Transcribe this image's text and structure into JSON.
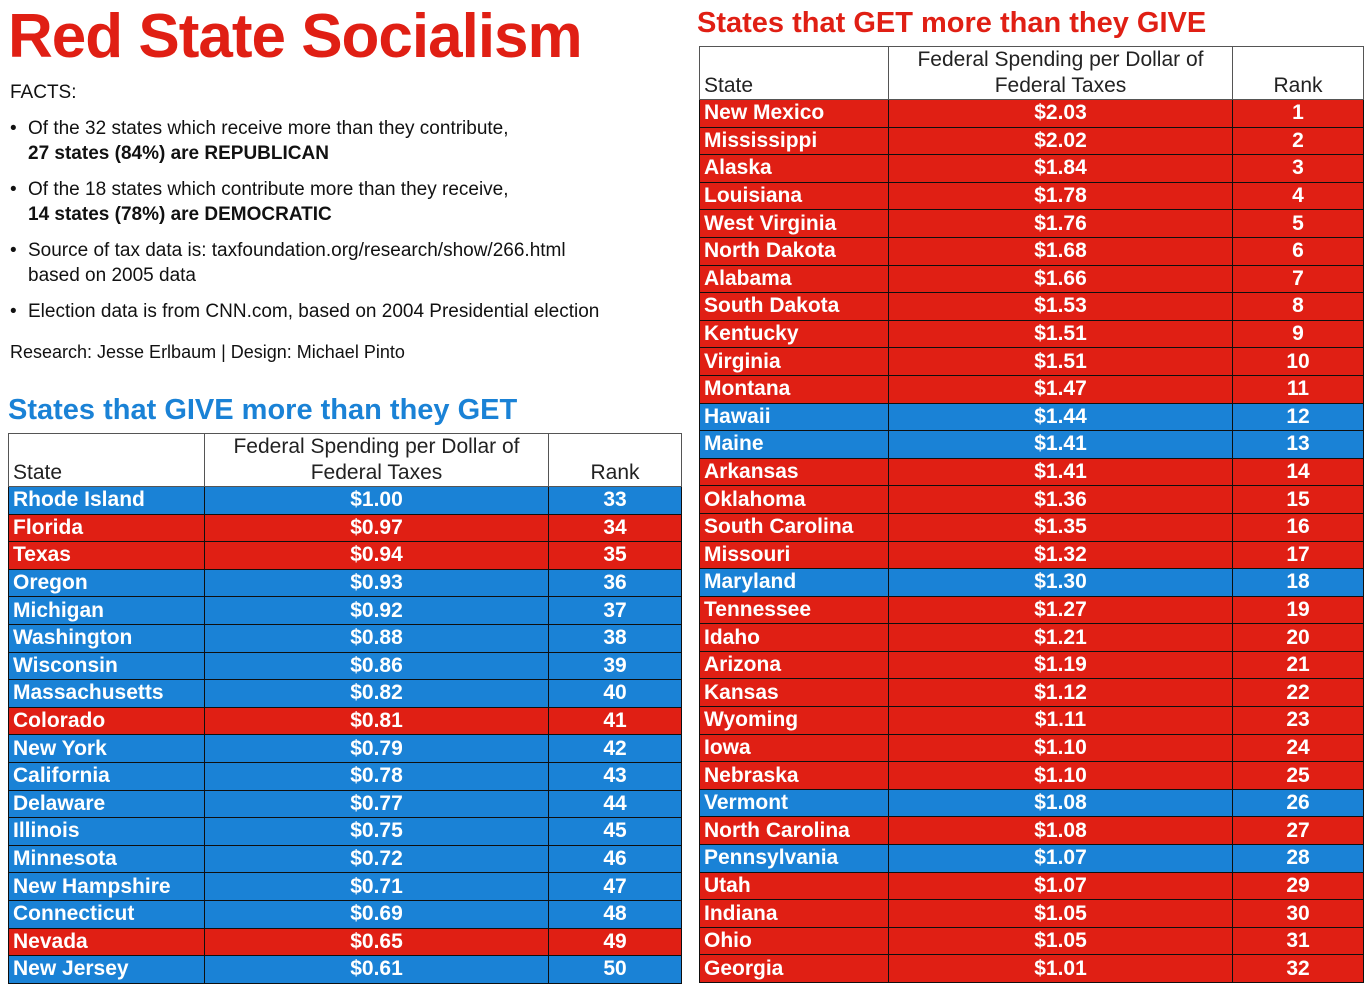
{
  "title": "Red State Socialism",
  "facts_heading": "FACTS:",
  "facts": [
    {
      "line1": "Of the 32 states which receive more than they contribute,",
      "line2": "27 states (84%) are REPUBLICAN"
    },
    {
      "line1": "Of the 18 states which contribute more than they receive,",
      "line2": "14 states (78%) are DEMOCRATIC"
    },
    {
      "line1": "Source of tax data is: taxfoundation.org/research/show/266.html",
      "line2": "based on 2005 data"
    },
    {
      "line1": "Election data is from CNN.com, based on 2004 Presidential election"
    }
  ],
  "bullet": "•",
  "credits": "Research: Jesse Erlbaum | Design: Michael Pinto",
  "colors": {
    "red": "#e01f14",
    "blue": "#1a82d6"
  },
  "give": {
    "title": "States that GIVE more than they GET",
    "headers": {
      "state": "State",
      "fed_line1": "Federal Spending per Dollar of",
      "fed_line2": "Federal Taxes",
      "rank": "Rank"
    },
    "rows": [
      {
        "state": "Rhode Island",
        "value": "$1.00",
        "rank": "33",
        "party": "blue"
      },
      {
        "state": "Florida",
        "value": "$0.97",
        "rank": "34",
        "party": "red"
      },
      {
        "state": "Texas",
        "value": "$0.94",
        "rank": "35",
        "party": "red"
      },
      {
        "state": "Oregon",
        "value": "$0.93",
        "rank": "36",
        "party": "blue"
      },
      {
        "state": "Michigan",
        "value": "$0.92",
        "rank": "37",
        "party": "blue"
      },
      {
        "state": "Washington",
        "value": "$0.88",
        "rank": "38",
        "party": "blue"
      },
      {
        "state": "Wisconsin",
        "value": "$0.86",
        "rank": "39",
        "party": "blue"
      },
      {
        "state": "Massachusetts",
        "value": "$0.82",
        "rank": "40",
        "party": "blue"
      },
      {
        "state": "Colorado",
        "value": "$0.81",
        "rank": "41",
        "party": "red"
      },
      {
        "state": "New York",
        "value": "$0.79",
        "rank": "42",
        "party": "blue"
      },
      {
        "state": "California",
        "value": "$0.78",
        "rank": "43",
        "party": "blue"
      },
      {
        "state": "Delaware",
        "value": "$0.77",
        "rank": "44",
        "party": "blue"
      },
      {
        "state": "Illinois",
        "value": "$0.75",
        "rank": "45",
        "party": "blue"
      },
      {
        "state": "Minnesota",
        "value": "$0.72",
        "rank": "46",
        "party": "blue"
      },
      {
        "state": "New Hampshire",
        "value": "$0.71",
        "rank": "47",
        "party": "blue"
      },
      {
        "state": "Connecticut",
        "value": "$0.69",
        "rank": "48",
        "party": "blue"
      },
      {
        "state": "Nevada",
        "value": "$0.65",
        "rank": "49",
        "party": "red"
      },
      {
        "state": "New Jersey",
        "value": "$0.61",
        "rank": "50",
        "party": "blue"
      }
    ]
  },
  "get": {
    "title": "States that GET more than they GIVE",
    "headers": {
      "state": "State",
      "fed_line1": "Federal Spending per Dollar of",
      "fed_line2": "Federal Taxes",
      "rank": "Rank"
    },
    "rows": [
      {
        "state": "New Mexico",
        "value": "$2.03",
        "rank": "1",
        "party": "red"
      },
      {
        "state": "Mississippi",
        "value": "$2.02",
        "rank": "2",
        "party": "red"
      },
      {
        "state": "Alaska",
        "value": "$1.84",
        "rank": "3",
        "party": "red"
      },
      {
        "state": "Louisiana",
        "value": "$1.78",
        "rank": "4",
        "party": "red"
      },
      {
        "state": "West Virginia",
        "value": "$1.76",
        "rank": "5",
        "party": "red"
      },
      {
        "state": "North Dakota",
        "value": "$1.68",
        "rank": "6",
        "party": "red"
      },
      {
        "state": "Alabama",
        "value": "$1.66",
        "rank": "7",
        "party": "red"
      },
      {
        "state": "South Dakota",
        "value": "$1.53",
        "rank": "8",
        "party": "red"
      },
      {
        "state": "Kentucky",
        "value": "$1.51",
        "rank": "9",
        "party": "red"
      },
      {
        "state": "Virginia",
        "value": "$1.51",
        "rank": "10",
        "party": "red"
      },
      {
        "state": "Montana",
        "value": "$1.47",
        "rank": "11",
        "party": "red"
      },
      {
        "state": "Hawaii",
        "value": "$1.44",
        "rank": "12",
        "party": "blue"
      },
      {
        "state": "Maine",
        "value": "$1.41",
        "rank": "13",
        "party": "blue"
      },
      {
        "state": "Arkansas",
        "value": "$1.41",
        "rank": "14",
        "party": "red"
      },
      {
        "state": "Oklahoma",
        "value": "$1.36",
        "rank": "15",
        "party": "red"
      },
      {
        "state": "South Carolina",
        "value": "$1.35",
        "rank": "16",
        "party": "red"
      },
      {
        "state": "Missouri",
        "value": "$1.32",
        "rank": "17",
        "party": "red"
      },
      {
        "state": "Maryland",
        "value": "$1.30",
        "rank": "18",
        "party": "blue"
      },
      {
        "state": "Tennessee",
        "value": "$1.27",
        "rank": "19",
        "party": "red"
      },
      {
        "state": "Idaho",
        "value": "$1.21",
        "rank": "20",
        "party": "red"
      },
      {
        "state": "Arizona",
        "value": "$1.19",
        "rank": "21",
        "party": "red"
      },
      {
        "state": "Kansas",
        "value": "$1.12",
        "rank": "22",
        "party": "red"
      },
      {
        "state": "Wyoming",
        "value": "$1.11",
        "rank": "23",
        "party": "red"
      },
      {
        "state": "Iowa",
        "value": "$1.10",
        "rank": "24",
        "party": "red"
      },
      {
        "state": "Nebraska",
        "value": "$1.10",
        "rank": "25",
        "party": "red"
      },
      {
        "state": "Vermont",
        "value": "$1.08",
        "rank": "26",
        "party": "blue"
      },
      {
        "state": "North Carolina",
        "value": "$1.08",
        "rank": "27",
        "party": "red"
      },
      {
        "state": "Pennsylvania",
        "value": "$1.07",
        "rank": "28",
        "party": "blue"
      },
      {
        "state": "Utah",
        "value": "$1.07",
        "rank": "29",
        "party": "red"
      },
      {
        "state": "Indiana",
        "value": "$1.05",
        "rank": "30",
        "party": "red"
      },
      {
        "state": "Ohio",
        "value": "$1.05",
        "rank": "31",
        "party": "red"
      },
      {
        "state": "Georgia",
        "value": "$1.01",
        "rank": "32",
        "party": "red"
      }
    ]
  }
}
